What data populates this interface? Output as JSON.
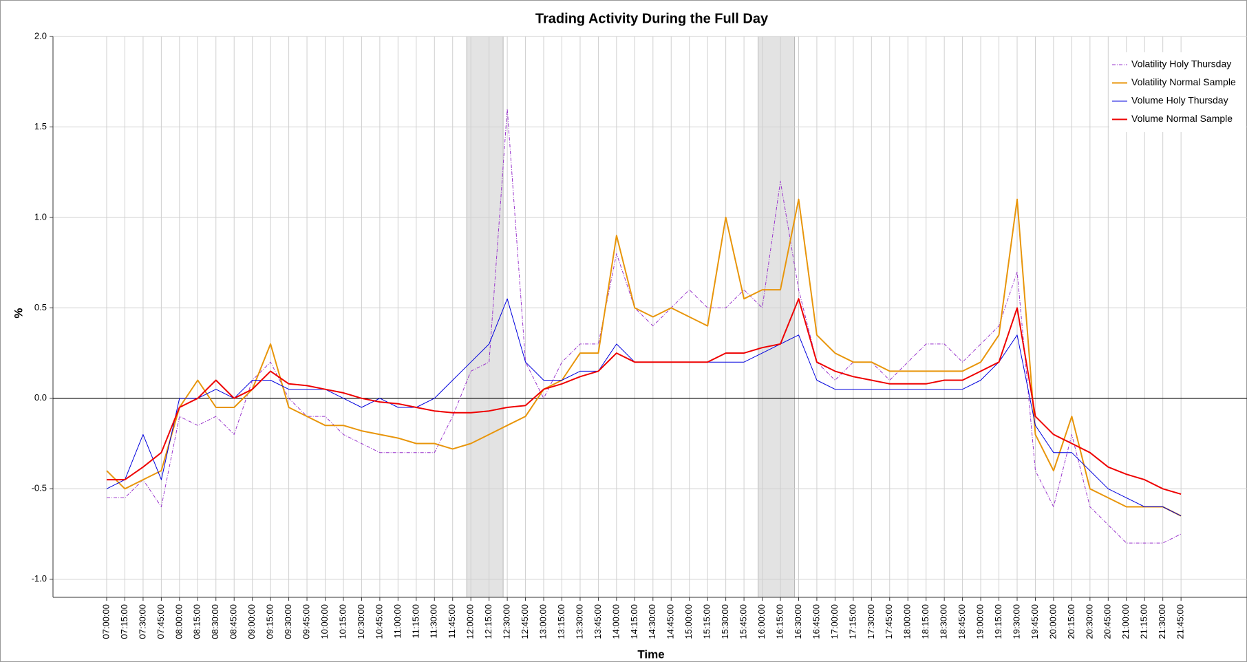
{
  "chart_data": {
    "type": "line",
    "title": "Trading Activity During the Full Day",
    "x_label": "Time",
    "y_label": "%",
    "x": [
      "07:00:00",
      "07:15:00",
      "07:30:00",
      "07:45:00",
      "08:00:00",
      "08:15:00",
      "08:30:00",
      "08:45:00",
      "09:00:00",
      "09:15:00",
      "09:30:00",
      "09:45:00",
      "10:00:00",
      "10:15:00",
      "10:30:00",
      "10:45:00",
      "11:00:00",
      "11:15:00",
      "11:30:00",
      "11:45:00",
      "12:00:00",
      "12:15:00",
      "12:30:00",
      "12:45:00",
      "13:00:00",
      "13:15:00",
      "13:30:00",
      "13:45:00",
      "14:00:00",
      "14:15:00",
      "14:30:00",
      "14:45:00",
      "15:00:00",
      "15:15:00",
      "15:30:00",
      "15:45:00",
      "16:00:00",
      "16:15:00",
      "16:30:00",
      "16:45:00",
      "17:00:00",
      "17:15:00",
      "17:30:00",
      "17:45:00",
      "18:00:00",
      "18:15:00",
      "18:30:00",
      "18:45:00",
      "19:00:00",
      "19:15:00",
      "19:30:00",
      "19:45:00",
      "20:00:00",
      "20:15:00",
      "20:30:00",
      "20:45:00",
      "21:00:00",
      "21:15:00",
      "21:30:00",
      "21:45:00"
    ],
    "series": [
      {
        "name": "Volatility Holy Thursday",
        "color": "#9933cc",
        "line_style": "dashed",
        "line_width": 1,
        "values": [
          -0.55,
          -0.55,
          -0.45,
          -0.6,
          -0.1,
          -0.15,
          -0.1,
          -0.2,
          0.1,
          0.2,
          0.0,
          -0.1,
          -0.1,
          -0.2,
          -0.25,
          -0.3,
          -0.3,
          -0.3,
          -0.3,
          -0.1,
          0.15,
          0.2,
          1.6,
          0.2,
          0.0,
          0.2,
          0.3,
          0.3,
          0.8,
          0.5,
          0.4,
          0.5,
          0.6,
          0.5,
          0.5,
          0.6,
          0.5,
          1.2,
          0.6,
          0.2,
          0.1,
          0.2,
          0.2,
          0.1,
          0.2,
          0.3,
          0.3,
          0.2,
          0.3,
          0.4,
          0.7,
          -0.4,
          -0.6,
          -0.2,
          -0.6,
          -0.7,
          -0.8,
          -0.8,
          -0.8,
          -0.75
        ]
      },
      {
        "name": "Volatility Normal Sample",
        "color": "#e8950a",
        "line_style": "solid",
        "line_width": 2,
        "values": [
          -0.4,
          -0.5,
          -0.45,
          -0.4,
          -0.05,
          0.1,
          -0.05,
          -0.05,
          0.05,
          0.3,
          -0.05,
          -0.1,
          -0.15,
          -0.15,
          -0.18,
          -0.2,
          -0.22,
          -0.25,
          -0.25,
          -0.28,
          -0.25,
          -0.2,
          -0.15,
          -0.1,
          0.05,
          0.1,
          0.25,
          0.25,
          0.9,
          0.5,
          0.45,
          0.5,
          0.45,
          0.4,
          1.0,
          0.55,
          0.6,
          0.6,
          1.1,
          0.35,
          0.25,
          0.2,
          0.2,
          0.15,
          0.15,
          0.15,
          0.15,
          0.15,
          0.2,
          0.35,
          1.1,
          -0.2,
          -0.4,
          -0.1,
          -0.5,
          -0.55,
          -0.6,
          -0.6,
          -0.6,
          -0.65
        ]
      },
      {
        "name": "Volume Holy Thursday",
        "color": "#0000dd",
        "line_style": "solid",
        "line_width": 1,
        "values": [
          -0.5,
          -0.45,
          -0.2,
          -0.45,
          0.0,
          0.0,
          0.05,
          0.0,
          0.1,
          0.1,
          0.05,
          0.05,
          0.05,
          0.0,
          -0.05,
          0.0,
          -0.05,
          -0.05,
          0.0,
          0.1,
          0.2,
          0.3,
          0.55,
          0.2,
          0.1,
          0.1,
          0.15,
          0.15,
          0.3,
          0.2,
          0.2,
          0.2,
          0.2,
          0.2,
          0.2,
          0.2,
          0.25,
          0.3,
          0.35,
          0.1,
          0.05,
          0.05,
          0.05,
          0.05,
          0.05,
          0.05,
          0.05,
          0.05,
          0.1,
          0.2,
          0.35,
          -0.15,
          -0.3,
          -0.3,
          -0.4,
          -0.5,
          -0.55,
          -0.6,
          -0.6,
          -0.65
        ]
      },
      {
        "name": "Volume Normal Sample",
        "color": "#ee0000",
        "line_style": "solid",
        "line_width": 2,
        "values": [
          -0.45,
          -0.45,
          -0.38,
          -0.3,
          -0.05,
          0.0,
          0.1,
          0.0,
          0.05,
          0.15,
          0.08,
          0.07,
          0.05,
          0.03,
          0.0,
          -0.02,
          -0.03,
          -0.05,
          -0.07,
          -0.08,
          -0.08,
          -0.07,
          -0.05,
          -0.04,
          0.05,
          0.08,
          0.12,
          0.15,
          0.25,
          0.2,
          0.2,
          0.2,
          0.2,
          0.2,
          0.25,
          0.25,
          0.28,
          0.3,
          0.55,
          0.2,
          0.15,
          0.12,
          0.1,
          0.08,
          0.08,
          0.08,
          0.1,
          0.1,
          0.15,
          0.2,
          0.5,
          -0.1,
          -0.2,
          -0.25,
          -0.3,
          -0.38,
          -0.42,
          -0.45,
          -0.5,
          -0.53
        ]
      }
    ],
    "ylim": [
      -1.1,
      2.0
    ],
    "yticks": [
      {
        "value": -1,
        "label": "-1.0"
      },
      -0.5,
      {
        "value": 0,
        "label": "0.0"
      },
      0.5,
      {
        "value": 1,
        "label": "1.0"
      },
      1.5,
      {
        "value": 2,
        "label": "2.0"
      }
    ],
    "grid": true,
    "zero_line": true,
    "legend": "top-right",
    "shaded_regions": [
      [
        "12:00:00",
        "12:30:00"
      ],
      [
        "16:00:00",
        "16:30:00"
      ]
    ]
  }
}
